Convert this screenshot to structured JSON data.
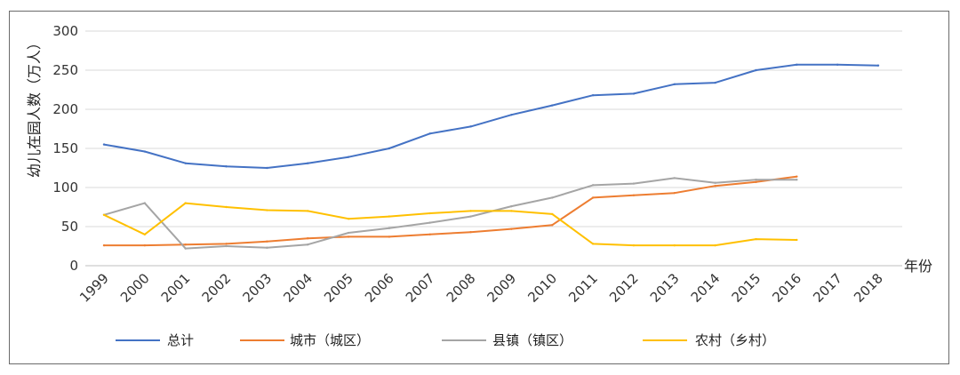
{
  "chart_data": {
    "type": "line",
    "title": "",
    "xlabel": "年份",
    "ylabel": "幼儿在园人数（万人）",
    "ylim": [
      0,
      300
    ],
    "yticks": [
      0,
      50,
      100,
      150,
      200,
      250,
      300
    ],
    "grid": true,
    "legend_position": "bottom",
    "categories": [
      "1999",
      "2000",
      "2001",
      "2002",
      "2003",
      "2004",
      "2005",
      "2006",
      "2007",
      "2008",
      "2009",
      "2010",
      "2011",
      "2012",
      "2013",
      "2014",
      "2015",
      "2016",
      "2017",
      "2018"
    ],
    "series": [
      {
        "name": "总计",
        "color": "#4472c4",
        "values": [
          155,
          146,
          131,
          127,
          125,
          131,
          139,
          150,
          169,
          178,
          193,
          205,
          218,
          220,
          232,
          234,
          250,
          257,
          257,
          256
        ]
      },
      {
        "name": "城市（城区）",
        "color": "#ed7d31",
        "values": [
          26,
          26,
          27,
          28,
          31,
          35,
          37,
          37,
          40,
          43,
          47,
          52,
          87,
          90,
          93,
          102,
          107,
          114,
          null,
          null
        ]
      },
      {
        "name": "县镇（镇区）",
        "color": "#a5a5a5",
        "values": [
          65,
          80,
          22,
          25,
          23,
          27,
          42,
          48,
          55,
          63,
          76,
          87,
          103,
          105,
          112,
          106,
          110,
          110,
          null,
          null
        ]
      },
      {
        "name": "农村（乡村）",
        "color": "#ffc000",
        "values": [
          65,
          40,
          80,
          75,
          71,
          70,
          60,
          63,
          67,
          70,
          70,
          66,
          28,
          26,
          26,
          26,
          34,
          33,
          null,
          null
        ]
      }
    ]
  }
}
